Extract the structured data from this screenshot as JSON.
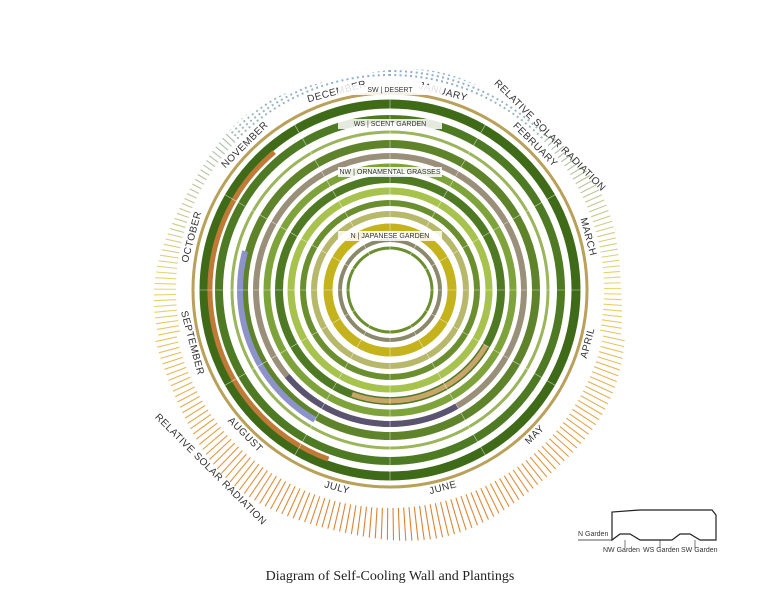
{
  "title": "Diagram of Self-Cooling Wall and Plantings",
  "months": [
    "JANUARY",
    "FEBRUARY",
    "MARCH",
    "APRIL",
    "MAY",
    "JUNE",
    "JULY",
    "AUGUST",
    "SEPTEMBER",
    "OCTOBER",
    "NOVEMBER",
    "DECEMBER"
  ],
  "gardens": [
    "SW | DESERT",
    "WS | SCENT GARDEN",
    "NW | ORNAMENTAL GRASSES",
    "N | JAPANESE GARDEN"
  ],
  "radiation_labels": [
    "RELATIVE SOLAR RADIATION",
    "RELATIVE SOLAR RADIATION"
  ],
  "legend": [
    "N Garden",
    "NW Garden",
    "WS Garden",
    "SW Garden"
  ]
}
